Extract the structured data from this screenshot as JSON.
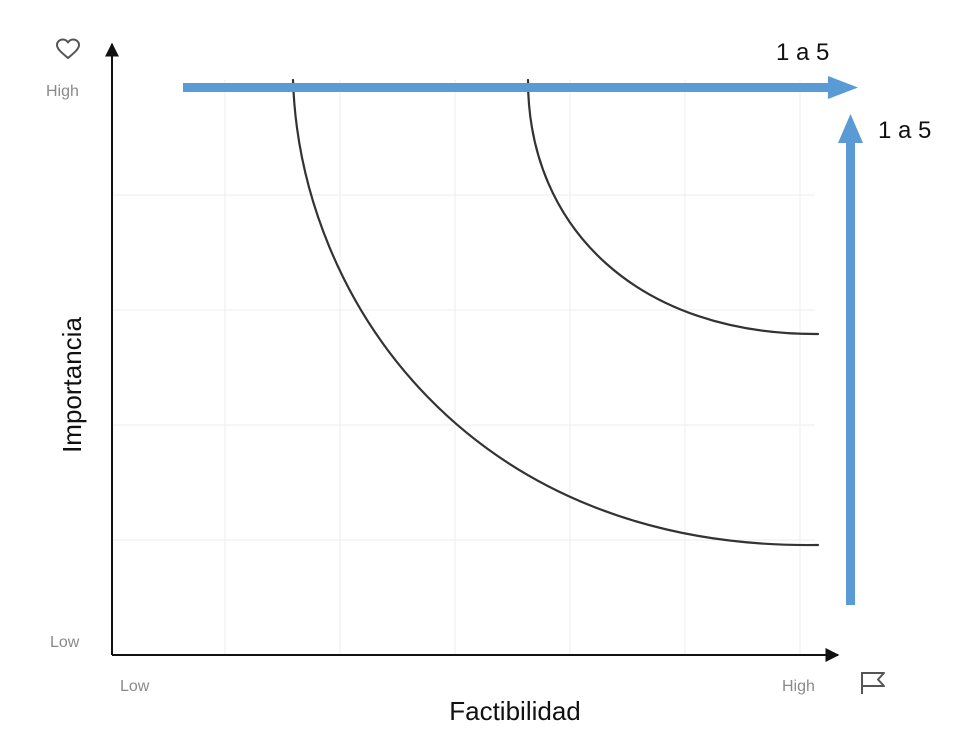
{
  "y_axis": {
    "title": "Importancia",
    "high_label": "High",
    "low_label": "Low",
    "icon": "heart-icon"
  },
  "x_axis": {
    "title": "Factibilidad",
    "high_label": "High",
    "low_label": "Low",
    "icon": "flag-icon"
  },
  "scale_arrows": {
    "horizontal_label": "1 a 5",
    "vertical_label": "1 a 5",
    "color": "#5b9bd5"
  },
  "colors": {
    "axis": "#111111",
    "curve": "#333333",
    "grid": "#eeeeee",
    "tick_text": "#8a8a8a"
  }
}
